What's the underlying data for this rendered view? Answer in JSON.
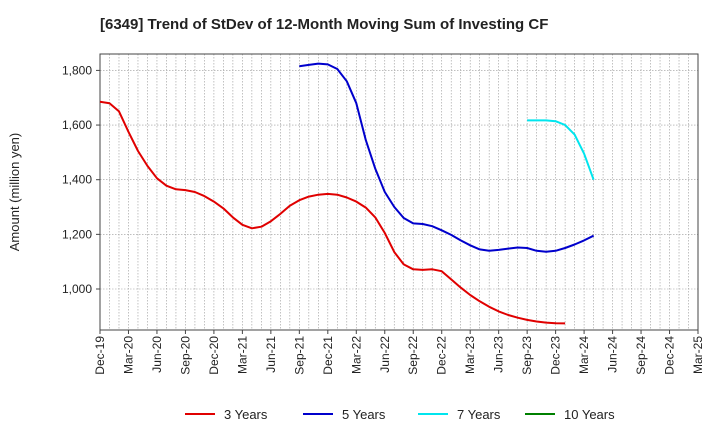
{
  "chart_data": {
    "type": "line",
    "title": "[6349]  Trend of StDev of 12-Month Moving Sum of Investing CF",
    "xlabel": "",
    "ylabel": "Amount (million yen)",
    "ylim": [
      850,
      1860
    ],
    "yticks": [
      1000,
      1200,
      1400,
      1600,
      1800
    ],
    "ytick_labels": [
      "1,000",
      "1,200",
      "1,400",
      "1,600",
      "1,800"
    ],
    "x_range_months": [
      "Dec-19",
      "Mar-25"
    ],
    "xtick_labels": [
      "Dec-19",
      "Mar-20",
      "Jun-20",
      "Sep-20",
      "Dec-20",
      "Mar-21",
      "Jun-21",
      "Sep-21",
      "Dec-21",
      "Mar-22",
      "Jun-22",
      "Sep-22",
      "Dec-22",
      "Mar-23",
      "Jun-23",
      "Sep-23",
      "Dec-23",
      "Mar-24",
      "Jun-24",
      "Sep-24",
      "Dec-24",
      "Mar-25"
    ],
    "grid": true,
    "legend_position": "bottom",
    "series": [
      {
        "name": "3 Years",
        "color": "#e00000",
        "start": "Dec-19",
        "values": [
          1685,
          1680,
          1650,
          1575,
          1505,
          1450,
          1405,
          1378,
          1365,
          1362,
          1355,
          1340,
          1320,
          1295,
          1262,
          1235,
          1222,
          1228,
          1248,
          1275,
          1305,
          1325,
          1338,
          1345,
          1348,
          1345,
          1335,
          1320,
          1298,
          1262,
          1205,
          1135,
          1090,
          1072,
          1070,
          1072,
          1065,
          1035,
          1005,
          978,
          955,
          935,
          918,
          905,
          895,
          887,
          881,
          877,
          875,
          874
        ]
      },
      {
        "name": "5 Years",
        "color": "#0000cc",
        "start": "Sep-21",
        "values": [
          1815,
          1820,
          1825,
          1822,
          1805,
          1760,
          1680,
          1545,
          1440,
          1355,
          1300,
          1260,
          1240,
          1238,
          1230,
          1215,
          1198,
          1178,
          1160,
          1145,
          1140,
          1143,
          1148,
          1152,
          1150,
          1140,
          1136,
          1140,
          1150,
          1163,
          1178,
          1195
        ]
      },
      {
        "name": "7 Years",
        "color": "#00e5ee",
        "start": "Sep-23",
        "values": [
          1617,
          1617,
          1617,
          1614,
          1600,
          1565,
          1495,
          1400
        ]
      },
      {
        "name": "10 Years",
        "color": "#008000",
        "start": "Mar-24",
        "values": []
      }
    ]
  }
}
